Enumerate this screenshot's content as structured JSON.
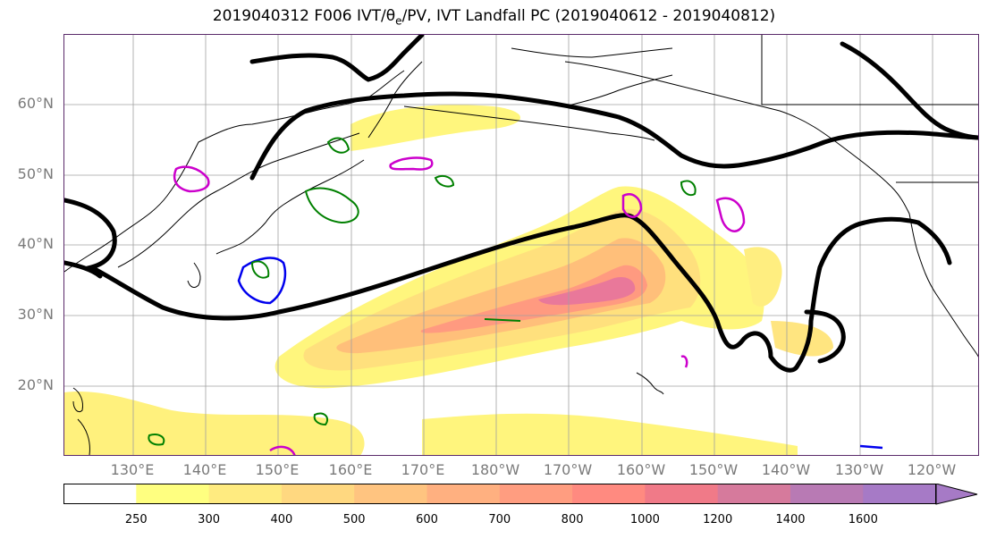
{
  "title": {
    "pre": "2019040312 F006 IVT/",
    "theta": "θ",
    "sub": "e",
    "post": "/PV, IVT Landfall PC (2019040612 - 2019040812)"
  },
  "lat_labels": [
    "60°N",
    "50°N",
    "40°N",
    "30°N",
    "20°N"
  ],
  "lon_labels": [
    "130°E",
    "140°E",
    "150°E",
    "160°E",
    "170°E",
    "180°W",
    "170°W",
    "160°W",
    "150°W",
    "140°W",
    "130°W",
    "120°W"
  ],
  "colorbar": {
    "ticks": [
      "250",
      "300",
      "400",
      "500",
      "600",
      "700",
      "800",
      "1000",
      "1200",
      "1400",
      "1600"
    ],
    "colors": [
      "#ffffff",
      "#ffff80",
      "#ffeb80",
      "#ffd880",
      "#ffc480",
      "#ffb080",
      "#ff9d80",
      "#ff8a80",
      "#f07a88",
      "#d67a9c",
      "#b87ab4",
      "#a67ac6"
    ]
  },
  "colors": {
    "pc_contour": "#000000",
    "pv_contour_green": "#008000",
    "theta_contour_magenta": "#cc00cc",
    "theta_contour_blue": "#0000ee",
    "coastline": "#000000",
    "gridline": "#a0a0a0"
  }
}
